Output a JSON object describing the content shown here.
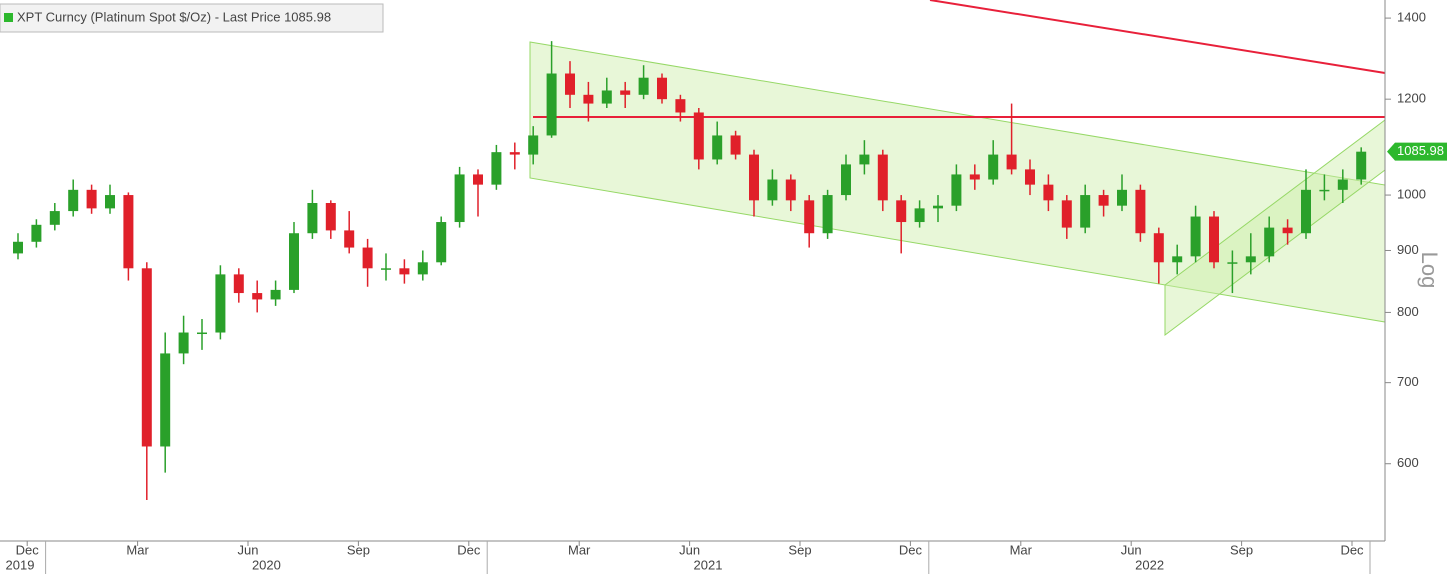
{
  "chart_data": {
    "type": "candlestick",
    "legend": "XPT Curncy (Platinum Spot  $/Oz) - Last Price 1085.98",
    "legend_color": "#2db82d",
    "y_label": "Log",
    "log_scale": true,
    "ylim": [
      519,
      1449
    ],
    "yticks": [
      600,
      700,
      800,
      900,
      1000,
      1200,
      1400
    ],
    "last_price": 1085.98,
    "up_color": "#2aa02a",
    "down_color": "#e0202a",
    "x_groups": [
      "2019",
      "2020",
      "2021",
      "2022"
    ],
    "categories": [
      "Dec",
      null,
      null,
      null,
      null,
      null,
      "Mar",
      null,
      null,
      null,
      null,
      null,
      "Jun",
      null,
      null,
      null,
      null,
      null,
      "Sep",
      null,
      null,
      null,
      null,
      null,
      "Dec",
      null,
      null,
      null,
      null,
      null,
      "Mar",
      null,
      null,
      null,
      null,
      null,
      "Jun",
      null,
      null,
      null,
      null,
      null,
      "Sep",
      null,
      null,
      null,
      null,
      null,
      "Dec",
      null,
      null,
      null,
      null,
      null,
      "Mar",
      null,
      null,
      null,
      null,
      null,
      "Jun",
      null,
      null,
      null,
      null,
      null,
      "Sep",
      null,
      null,
      null,
      null,
      null,
      "Dec",
      null
    ],
    "open": [
      895,
      915,
      945,
      970,
      1010,
      975,
      1000,
      870,
      620,
      740,
      770,
      770,
      860,
      830,
      820,
      835,
      930,
      985,
      935,
      905,
      870,
      870,
      860,
      880,
      950,
      1040,
      1020,
      1085,
      1080,
      1120,
      1260,
      1210,
      1190,
      1220,
      1210,
      1250,
      1200,
      1170,
      1070,
      1120,
      1080,
      990,
      1030,
      990,
      930,
      1000,
      1060,
      1080,
      990,
      950,
      975,
      980,
      1040,
      1030,
      1080,
      1050,
      1020,
      990,
      940,
      1000,
      980,
      1010,
      930,
      880,
      890,
      960,
      880,
      880,
      890,
      940,
      930,
      1010,
      1010,
      1030
    ],
    "high": [
      930,
      955,
      985,
      1030,
      1020,
      1020,
      1005,
      880,
      770,
      795,
      790,
      875,
      870,
      850,
      850,
      950,
      1010,
      990,
      970,
      920,
      895,
      885,
      900,
      960,
      1055,
      1050,
      1100,
      1105,
      1140,
      1340,
      1290,
      1240,
      1250,
      1240,
      1280,
      1260,
      1210,
      1180,
      1150,
      1130,
      1090,
      1050,
      1040,
      1000,
      1010,
      1080,
      1110,
      1090,
      1000,
      990,
      1000,
      1060,
      1060,
      1110,
      1190,
      1070,
      1040,
      1000,
      1020,
      1010,
      1040,
      1020,
      940,
      910,
      980,
      970,
      900,
      930,
      960,
      955,
      1050,
      1040,
      1050,
      1095
    ],
    "low": [
      885,
      905,
      935,
      960,
      965,
      965,
      850,
      560,
      590,
      725,
      745,
      760,
      815,
      800,
      810,
      830,
      920,
      920,
      895,
      840,
      850,
      845,
      850,
      875,
      940,
      960,
      1010,
      1050,
      1060,
      1115,
      1180,
      1150,
      1180,
      1180,
      1200,
      1190,
      1150,
      1050,
      1060,
      1070,
      960,
      980,
      970,
      905,
      920,
      990,
      1040,
      970,
      895,
      940,
      950,
      970,
      1010,
      1020,
      1040,
      1000,
      970,
      920,
      930,
      960,
      970,
      915,
      845,
      860,
      880,
      870,
      830,
      860,
      880,
      910,
      920,
      990,
      985,
      1020
    ],
    "close": [
      915,
      945,
      970,
      1010,
      975,
      1000,
      870,
      620,
      740,
      770,
      770,
      860,
      830,
      820,
      835,
      930,
      985,
      935,
      905,
      870,
      870,
      860,
      880,
      950,
      1040,
      1020,
      1085,
      1080,
      1120,
      1260,
      1210,
      1190,
      1220,
      1210,
      1250,
      1200,
      1170,
      1070,
      1120,
      1080,
      990,
      1030,
      990,
      930,
      1000,
      1060,
      1080,
      990,
      950,
      975,
      980,
      1040,
      1030,
      1080,
      1050,
      1020,
      990,
      940,
      1000,
      980,
      1010,
      930,
      880,
      890,
      960,
      880,
      880,
      890,
      940,
      930,
      1010,
      1010,
      1030,
      1085.98
    ]
  }
}
